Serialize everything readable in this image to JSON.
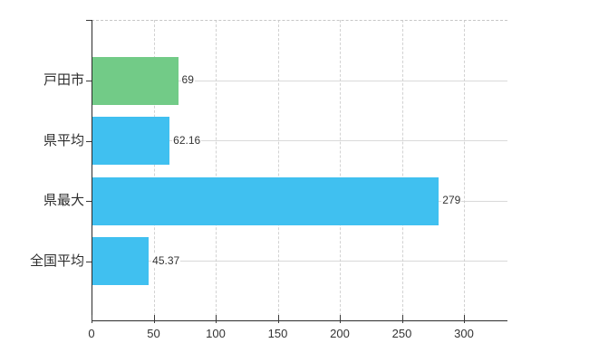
{
  "chart_data": {
    "type": "bar",
    "orientation": "horizontal",
    "title": "",
    "xlabel": "",
    "ylabel": "",
    "categories": [
      "戸田市",
      "県平均",
      "県最大",
      "全国平均"
    ],
    "values": [
      69,
      62.16,
      279,
      45.37
    ],
    "value_labels": [
      "69",
      "62.16",
      "279",
      "45.37"
    ],
    "bar_colors": [
      "#72cb87",
      "#40c0f0",
      "#40c0f0",
      "#40c0f0"
    ],
    "xlim": [
      0,
      335
    ],
    "x_ticks": [
      0,
      50,
      100,
      150,
      200,
      250,
      300
    ],
    "x_tick_labels": [
      "0",
      "50",
      "100",
      "150",
      "200",
      "250",
      "300"
    ],
    "grid": "on",
    "legend": "none"
  },
  "colors": {
    "background": "#ffffff",
    "axis": "#2b2b2b",
    "grid_horizontal": "#d9d9d9",
    "grid_vertical": "#d2d2d2",
    "plot_top_border": "#c6c6c6",
    "category_text": "#2e2e2e",
    "tick_text": "#333333",
    "value_text": "#333333",
    "bar_green": "#72cb87",
    "bar_blue": "#40c0f0"
  }
}
